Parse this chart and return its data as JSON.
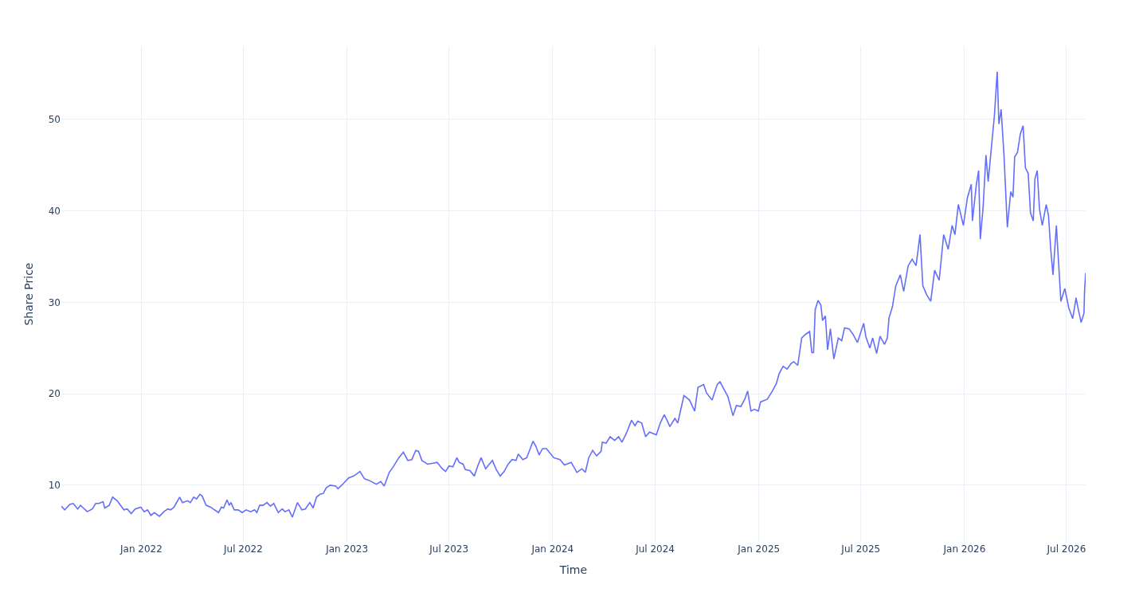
{
  "chart_data": {
    "type": "line",
    "xlabel": "Time",
    "ylabel": "Share Price",
    "grid": true,
    "marker": "none",
    "line_style": "solid",
    "xlim": [
      "2021-08-12",
      "2026-08-04"
    ],
    "ylim": [
      3.8,
      58
    ],
    "xticks": [
      {
        "value": "2022-01-01",
        "label": "Jan 2022"
      },
      {
        "value": "2022-07-01",
        "label": "Jul 2022"
      },
      {
        "value": "2023-01-01",
        "label": "Jan 2023"
      },
      {
        "value": "2023-07-01",
        "label": "Jul 2023"
      },
      {
        "value": "2024-01-01",
        "label": "Jan 2024"
      },
      {
        "value": "2024-07-01",
        "label": "Jul 2024"
      },
      {
        "value": "2025-01-01",
        "label": "Jan 2025"
      },
      {
        "value": "2025-07-01",
        "label": "Jul 2025"
      },
      {
        "value": "2026-01-01",
        "label": "Jan 2026"
      },
      {
        "value": "2026-07-01",
        "label": "Jul 2026"
      }
    ],
    "yticks": [
      10,
      20,
      30,
      40,
      50
    ],
    "x": [
      "2021-08-12",
      "2021-08-18",
      "2021-08-27",
      "2021-09-02",
      "2021-09-10",
      "2021-09-15",
      "2021-09-27",
      "2021-10-06",
      "2021-10-12",
      "2021-10-18",
      "2021-10-25",
      "2021-10-28",
      "2021-11-05",
      "2021-11-11",
      "2021-11-19",
      "2021-12-01",
      "2021-12-07",
      "2021-12-14",
      "2021-12-21",
      "2021-12-31",
      "2022-01-06",
      "2022-01-12",
      "2022-01-18",
      "2022-01-24",
      "2022-02-02",
      "2022-02-10",
      "2022-02-17",
      "2022-02-22",
      "2022-02-28",
      "2022-03-10",
      "2022-03-15",
      "2022-03-24",
      "2022-03-29",
      "2022-04-04",
      "2022-04-09",
      "2022-04-15",
      "2022-04-19",
      "2022-04-26",
      "2022-05-04",
      "2022-05-11",
      "2022-05-18",
      "2022-05-23",
      "2022-05-27",
      "2022-06-02",
      "2022-06-06",
      "2022-06-09",
      "2022-06-15",
      "2022-06-22",
      "2022-06-29",
      "2022-07-06",
      "2022-07-14",
      "2022-07-21",
      "2022-07-25",
      "2022-07-30",
      "2022-08-05",
      "2022-08-12",
      "2022-08-18",
      "2022-08-24",
      "2022-09-01",
      "2022-09-08",
      "2022-09-13",
      "2022-09-20",
      "2022-09-26",
      "2022-10-05",
      "2022-10-13",
      "2022-10-19",
      "2022-10-27",
      "2022-11-02",
      "2022-11-08",
      "2022-11-14",
      "2022-11-20",
      "2022-11-25",
      "2022-12-02",
      "2022-12-12",
      "2022-12-16",
      "2022-12-26",
      "2023-01-04",
      "2023-01-13",
      "2023-01-24",
      "2023-02-01",
      "2023-02-10",
      "2023-02-22",
      "2023-03-02",
      "2023-03-08",
      "2023-03-17",
      "2023-03-24",
      "2023-04-03",
      "2023-04-11",
      "2023-04-19",
      "2023-04-26",
      "2023-05-03",
      "2023-05-08",
      "2023-05-14",
      "2023-05-24",
      "2023-06-03",
      "2023-06-10",
      "2023-06-19",
      "2023-06-25",
      "2023-07-01",
      "2023-07-08",
      "2023-07-15",
      "2023-07-19",
      "2023-07-26",
      "2023-07-30",
      "2023-08-07",
      "2023-08-15",
      "2023-08-21",
      "2023-08-27",
      "2023-09-04",
      "2023-09-16",
      "2023-09-23",
      "2023-09-30",
      "2023-10-07",
      "2023-10-14",
      "2023-10-21",
      "2023-10-28",
      "2023-11-01",
      "2023-11-09",
      "2023-11-16",
      "2023-11-21",
      "2023-11-27",
      "2023-12-02",
      "2023-12-08",
      "2023-12-14",
      "2023-12-21",
      "2024-01-03",
      "2024-01-14",
      "2024-01-22",
      "2024-02-03",
      "2024-02-13",
      "2024-02-22",
      "2024-02-28",
      "2024-03-05",
      "2024-03-12",
      "2024-03-19",
      "2024-03-27",
      "2024-03-29",
      "2024-04-05",
      "2024-04-12",
      "2024-04-20",
      "2024-04-27",
      "2024-05-03",
      "2024-05-11",
      "2024-05-20",
      "2024-05-26",
      "2024-05-31",
      "2024-06-07",
      "2024-06-14",
      "2024-06-21",
      "2024-07-03",
      "2024-07-10",
      "2024-07-17",
      "2024-07-22",
      "2024-07-27",
      "2024-08-05",
      "2024-08-10",
      "2024-08-17",
      "2024-08-21",
      "2024-08-31",
      "2024-09-09",
      "2024-09-15",
      "2024-09-25",
      "2024-09-30",
      "2024-10-10",
      "2024-10-19",
      "2024-10-24",
      "2024-10-31",
      "2024-11-07",
      "2024-11-16",
      "2024-11-22",
      "2024-11-30",
      "2024-12-07",
      "2024-12-12",
      "2024-12-18",
      "2024-12-24",
      "2024-12-31",
      "2025-01-04",
      "2025-01-16",
      "2025-01-25",
      "2025-02-01",
      "2025-02-06",
      "2025-02-13",
      "2025-02-20",
      "2025-02-27",
      "2025-03-04",
      "2025-03-11",
      "2025-03-18",
      "2025-03-25",
      "2025-04-01",
      "2025-04-05",
      "2025-04-08",
      "2025-04-11",
      "2025-04-16",
      "2025-04-21",
      "2025-04-24",
      "2025-04-29",
      "2025-05-03",
      "2025-05-08",
      "2025-05-14",
      "2025-05-22",
      "2025-05-28",
      "2025-06-02",
      "2025-06-10",
      "2025-06-17",
      "2025-06-25",
      "2025-07-06",
      "2025-07-10",
      "2025-07-17",
      "2025-07-22",
      "2025-07-29",
      "2025-08-04",
      "2025-08-12",
      "2025-08-17",
      "2025-08-20",
      "2025-08-26",
      "2025-09-01",
      "2025-09-09",
      "2025-09-15",
      "2025-09-23",
      "2025-09-30",
      "2025-10-07",
      "2025-10-14",
      "2025-10-19",
      "2025-10-26",
      "2025-11-02",
      "2025-11-09",
      "2025-11-17",
      "2025-11-25",
      "2025-12-03",
      "2025-12-10",
      "2025-12-15",
      "2025-12-21",
      "2025-12-30",
      "2026-01-06",
      "2026-01-13",
      "2026-01-15",
      "2026-01-22",
      "2026-01-26",
      "2026-01-29",
      "2026-02-03",
      "2026-02-08",
      "2026-02-12",
      "2026-02-19",
      "2026-02-23",
      "2026-02-28",
      "2026-03-03",
      "2026-03-07",
      "2026-03-12",
      "2026-03-18",
      "2026-03-24",
      "2026-03-28",
      "2026-03-31",
      "2026-04-05",
      "2026-04-10",
      "2026-04-15",
      "2026-04-19",
      "2026-04-24",
      "2026-04-28",
      "2026-05-03",
      "2026-05-06",
      "2026-05-10",
      "2026-05-14",
      "2026-05-19",
      "2026-05-26",
      "2026-05-30",
      "2026-06-03",
      "2026-06-07",
      "2026-06-13",
      "2026-06-21",
      "2026-06-28",
      "2026-07-05",
      "2026-07-12",
      "2026-07-18",
      "2026-07-21",
      "2026-07-27",
      "2026-08-01",
      "2026-08-02",
      "2026-08-04"
    ],
    "series": [
      {
        "color": "#636efa",
        "values": [
          7.7,
          7.3,
          7.9,
          8.0,
          7.4,
          7.8,
          7.1,
          7.4,
          8.0,
          8.0,
          8.2,
          7.5,
          7.8,
          8.7,
          8.3,
          7.3,
          7.4,
          6.9,
          7.4,
          7.6,
          7.1,
          7.3,
          6.7,
          7.0,
          6.6,
          7.1,
          7.4,
          7.3,
          7.6,
          8.7,
          8.1,
          8.3,
          8.1,
          8.7,
          8.5,
          9.0,
          8.8,
          7.8,
          7.6,
          7.3,
          7.0,
          7.6,
          7.5,
          8.4,
          7.8,
          8.1,
          7.3,
          7.3,
          7.0,
          7.3,
          7.1,
          7.3,
          7.0,
          7.8,
          7.8,
          8.1,
          7.7,
          8.0,
          7.0,
          7.4,
          7.1,
          7.3,
          6.5,
          8.1,
          7.3,
          7.4,
          8.1,
          7.5,
          8.7,
          9.0,
          9.1,
          9.7,
          10.0,
          9.9,
          9.6,
          10.2,
          10.8,
          11.0,
          11.5,
          10.7,
          10.5,
          10.1,
          10.4,
          9.9,
          11.4,
          12.0,
          13.0,
          13.6,
          12.7,
          12.8,
          13.8,
          13.7,
          12.7,
          12.3,
          12.4,
          12.5,
          11.8,
          11.5,
          12.1,
          12.0,
          13.0,
          12.5,
          12.3,
          11.7,
          11.6,
          11.0,
          12.1,
          13.0,
          11.8,
          12.7,
          11.7,
          11.0,
          11.5,
          12.3,
          12.8,
          12.7,
          13.4,
          12.8,
          13.0,
          13.8,
          14.8,
          14.3,
          13.3,
          14.0,
          14.0,
          13.0,
          12.8,
          12.2,
          12.5,
          11.4,
          11.8,
          11.4,
          13.0,
          13.8,
          13.2,
          13.7,
          14.7,
          14.6,
          15.3,
          14.9,
          15.3,
          14.7,
          15.7,
          17.1,
          16.5,
          17.0,
          16.8,
          15.3,
          15.8,
          15.5,
          16.8,
          17.7,
          17.1,
          16.4,
          17.3,
          16.8,
          18.7,
          19.8,
          19.3,
          18.1,
          20.7,
          21.0,
          20.1,
          19.3,
          21.0,
          21.3,
          20.5,
          19.7,
          17.6,
          18.7,
          18.6,
          19.4,
          20.3,
          18.1,
          18.3,
          18.1,
          19.1,
          19.4,
          20.3,
          21.1,
          22.2,
          23.0,
          22.7,
          23.3,
          23.5,
          23.1,
          26.1,
          26.5,
          26.8,
          24.5,
          24.5,
          29.2,
          30.2,
          29.7,
          28.0,
          28.5,
          24.8,
          27.1,
          23.8,
          26.1,
          25.8,
          27.2,
          27.1,
          26.5,
          25.6,
          27.7,
          26.2,
          25.0,
          26.1,
          24.4,
          26.3,
          25.4,
          26.1,
          28.3,
          29.5,
          31.8,
          33.0,
          31.2,
          34.0,
          34.7,
          34.0,
          37.4,
          31.8,
          30.8,
          30.1,
          33.5,
          32.4,
          37.4,
          35.8,
          38.4,
          37.4,
          40.7,
          38.4,
          41.4,
          42.9,
          38.9,
          42.9,
          44.4,
          36.9,
          40.4,
          46.1,
          43.2,
          47.8,
          50.4,
          55.2,
          49.5,
          51.1,
          46.1,
          38.2,
          42.1,
          41.5,
          45.9,
          46.4,
          48.4,
          49.3,
          44.7,
          44.1,
          39.8,
          38.9,
          43.5,
          44.4,
          40.2,
          38.4,
          40.7,
          39.5,
          35.8,
          33.0,
          38.4,
          30.1,
          31.5,
          29.4,
          28.2,
          30.5,
          29.5,
          27.8,
          28.8,
          31.2,
          33.2
        ]
      }
    ]
  }
}
